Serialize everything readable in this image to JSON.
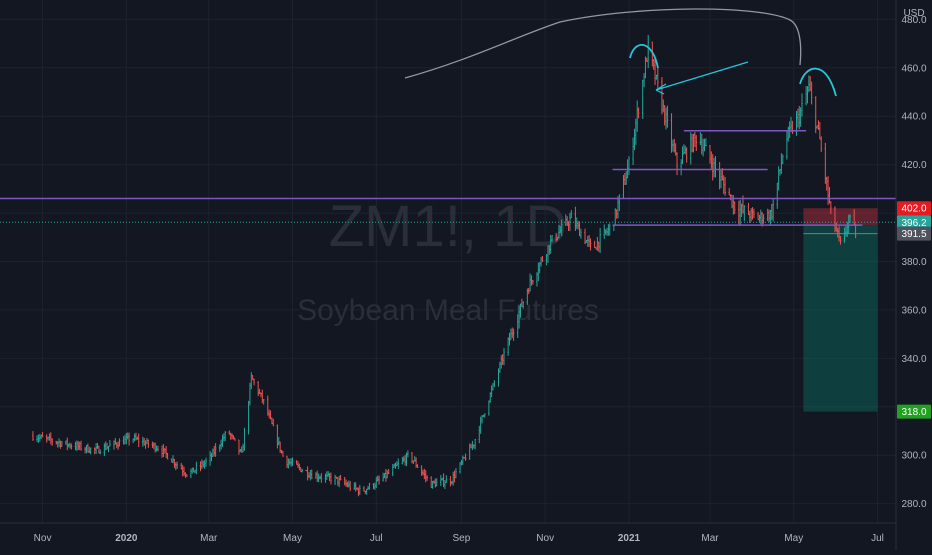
{
  "header": {
    "currency": "USD"
  },
  "watermark": {
    "symbol": "ZM1!, 1D",
    "name": "Soybean Meal Futures"
  },
  "price_labels": [
    {
      "value": 402.0,
      "text": "402.0",
      "color": "#e31b23"
    },
    {
      "value": 396.2,
      "text": "396.2",
      "color": "#26a69a"
    },
    {
      "value": 391.5,
      "text": "391.5",
      "color": "#50535e"
    },
    {
      "value": 318.0,
      "text": "318.0",
      "color": "#21a121"
    }
  ],
  "colors": {
    "up": "#26a69a",
    "down": "#ef5350",
    "drawing_line": "#7e57c2",
    "annotation": "#26c6da",
    "sketch": "#9598a1"
  },
  "chart_data": {
    "type": "candlestick",
    "ylim": [
      272,
      488
    ],
    "y_ticks": [
      280,
      300,
      320,
      340,
      360,
      380,
      400,
      420,
      440,
      460,
      480
    ],
    "y_tick_labels": [
      "280.0",
      "300.0",
      "",
      "340.0",
      "360.0",
      "380.0",
      "",
      "420.0",
      "440.0",
      "460.0",
      "480.0"
    ],
    "x_ticks": [
      {
        "label": "Nov",
        "bold": false
      },
      {
        "label": "2020",
        "bold": true
      },
      {
        "label": "Mar",
        "bold": false
      },
      {
        "label": "May",
        "bold": false
      },
      {
        "label": "Jul",
        "bold": false
      },
      {
        "label": "Sep",
        "bold": false
      },
      {
        "label": "Nov",
        "bold": false
      },
      {
        "label": "2021",
        "bold": true
      },
      {
        "label": "Mar",
        "bold": false
      },
      {
        "label": "May",
        "bold": false
      },
      {
        "label": "Jul",
        "bold": false
      }
    ],
    "price_path": [
      [
        "2019-10-25",
        308
      ],
      [
        "2019-11-15",
        305
      ],
      [
        "2019-12-10",
        302
      ],
      [
        "2020-01-05",
        307
      ],
      [
        "2020-01-25",
        303
      ],
      [
        "2020-02-15",
        292
      ],
      [
        "2020-03-01",
        298
      ],
      [
        "2020-03-15",
        310
      ],
      [
        "2020-03-25",
        300
      ],
      [
        "2020-04-01",
        332
      ],
      [
        "2020-04-10",
        322
      ],
      [
        "2020-04-25",
        298
      ],
      [
        "2020-05-15",
        292
      ],
      [
        "2020-06-01",
        290
      ],
      [
        "2020-06-20",
        285
      ],
      [
        "2020-07-05",
        290
      ],
      [
        "2020-07-25",
        300
      ],
      [
        "2020-08-10",
        288
      ],
      [
        "2020-08-25",
        290
      ],
      [
        "2020-09-10",
        305
      ],
      [
        "2020-10-01",
        340
      ],
      [
        "2020-10-20",
        370
      ],
      [
        "2020-11-05",
        388
      ],
      [
        "2020-11-20",
        398
      ],
      [
        "2020-12-05",
        385
      ],
      [
        "2020-12-20",
        395
      ],
      [
        "2021-01-01",
        420
      ],
      [
        "2021-01-15",
        468
      ],
      [
        "2021-01-25",
        445
      ],
      [
        "2021-02-05",
        420
      ],
      [
        "2021-02-20",
        432
      ],
      [
        "2021-03-05",
        418
      ],
      [
        "2021-03-20",
        402
      ],
      [
        "2021-04-05",
        398
      ],
      [
        "2021-04-15",
        400
      ],
      [
        "2021-04-25",
        430
      ],
      [
        "2021-05-05",
        440
      ],
      [
        "2021-05-12",
        452
      ],
      [
        "2021-05-20",
        430
      ],
      [
        "2021-05-28",
        400
      ],
      [
        "2021-06-05",
        385
      ],
      [
        "2021-06-10",
        398
      ],
      [
        "2021-06-15",
        392
      ]
    ],
    "drawings": {
      "horizontal_line": 406,
      "segments": [
        {
          "from": "2020-12-20",
          "to": "2021-04-12",
          "y": 418
        },
        {
          "from": "2021-02-10",
          "to": "2021-05-10",
          "y": 434
        },
        {
          "from": "2020-12-20",
          "to": "2021-06-20",
          "y": 395
        }
      ],
      "short_position": {
        "from": "2021-05-08",
        "to": "2021-07-01",
        "entry": 395,
        "stop": 402,
        "target": 318
      }
    }
  }
}
